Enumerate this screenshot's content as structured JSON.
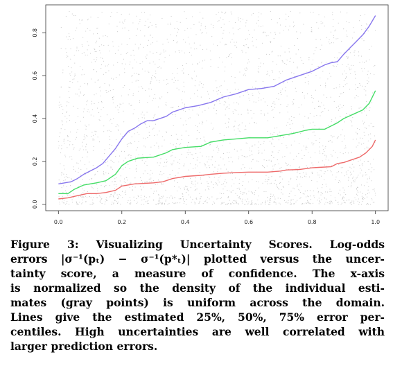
{
  "chart_data": {
    "type": "line",
    "title": "",
    "xlabel": "",
    "ylabel": "",
    "xlim": [
      0,
      1
    ],
    "ylim": [
      0,
      0.9
    ],
    "x_ticks": [
      "0.0",
      "0.2",
      "0.4",
      "0.6",
      "0.8",
      "1.0"
    ],
    "y_ticks": [
      "0.0",
      "0.2",
      "0.4",
      "0.6",
      "0.8"
    ],
    "grid": false,
    "legend": "none",
    "scatter_color": "#b0b0b0",
    "series": [
      {
        "color": "#ee6a6a",
        "x": [
          0.0,
          0.03,
          0.06,
          0.09,
          0.12,
          0.15,
          0.18,
          0.2,
          0.24,
          0.3,
          0.33,
          0.36,
          0.4,
          0.45,
          0.48,
          0.52,
          0.56,
          0.6,
          0.66,
          0.7,
          0.72,
          0.76,
          0.8,
          0.82,
          0.86,
          0.88,
          0.9,
          0.92,
          0.95,
          0.97,
          0.99,
          1.0
        ],
        "y": [
          0.025,
          0.03,
          0.04,
          0.05,
          0.05,
          0.055,
          0.065,
          0.085,
          0.095,
          0.1,
          0.105,
          0.12,
          0.13,
          0.135,
          0.14,
          0.145,
          0.148,
          0.15,
          0.15,
          0.155,
          0.16,
          0.162,
          0.17,
          0.172,
          0.175,
          0.19,
          0.195,
          0.205,
          0.22,
          0.24,
          0.27,
          0.3
        ]
      },
      {
        "color": "#44dd66",
        "x": [
          0.0,
          0.03,
          0.05,
          0.08,
          0.12,
          0.15,
          0.18,
          0.2,
          0.22,
          0.25,
          0.3,
          0.34,
          0.36,
          0.4,
          0.45,
          0.48,
          0.52,
          0.56,
          0.6,
          0.66,
          0.7,
          0.74,
          0.78,
          0.8,
          0.84,
          0.88,
          0.9,
          0.93,
          0.96,
          0.98,
          1.0
        ],
        "y": [
          0.05,
          0.05,
          0.07,
          0.09,
          0.1,
          0.11,
          0.14,
          0.18,
          0.2,
          0.215,
          0.22,
          0.24,
          0.255,
          0.265,
          0.27,
          0.29,
          0.3,
          0.305,
          0.31,
          0.31,
          0.32,
          0.33,
          0.345,
          0.35,
          0.35,
          0.38,
          0.4,
          0.42,
          0.44,
          0.47,
          0.53
        ]
      },
      {
        "color": "#8877ee",
        "x": [
          0.0,
          0.02,
          0.04,
          0.06,
          0.08,
          0.1,
          0.12,
          0.14,
          0.16,
          0.18,
          0.2,
          0.22,
          0.24,
          0.26,
          0.28,
          0.3,
          0.34,
          0.36,
          0.4,
          0.44,
          0.48,
          0.52,
          0.56,
          0.6,
          0.64,
          0.68,
          0.7,
          0.72,
          0.76,
          0.8,
          0.84,
          0.86,
          0.88,
          0.9,
          0.92,
          0.94,
          0.96,
          0.98,
          1.0
        ],
        "y": [
          0.095,
          0.1,
          0.105,
          0.12,
          0.14,
          0.155,
          0.17,
          0.19,
          0.225,
          0.26,
          0.305,
          0.34,
          0.355,
          0.375,
          0.39,
          0.39,
          0.41,
          0.43,
          0.45,
          0.46,
          0.475,
          0.5,
          0.515,
          0.535,
          0.54,
          0.55,
          0.565,
          0.58,
          0.6,
          0.62,
          0.65,
          0.66,
          0.665,
          0.7,
          0.73,
          0.76,
          0.79,
          0.83,
          0.88
        ]
      }
    ]
  },
  "caption": {
    "lines": [
      "Figure 3: Visualizing Uncertainty Scores. Log-odds",
      "errors |σ⁻¹(pₜ) − σ⁻¹(p*ₜ)| plotted versus the uncer-",
      "tainty score, a measure of confidence. The x-axis",
      "is normalized so the density of the individual esti-",
      "mates (gray points) is uniform across the domain.",
      "Lines give the estimated 25%, 50%, 75% error per-",
      "centiles. High uncertainties are well correlated with",
      "larger prediction errors."
    ]
  }
}
